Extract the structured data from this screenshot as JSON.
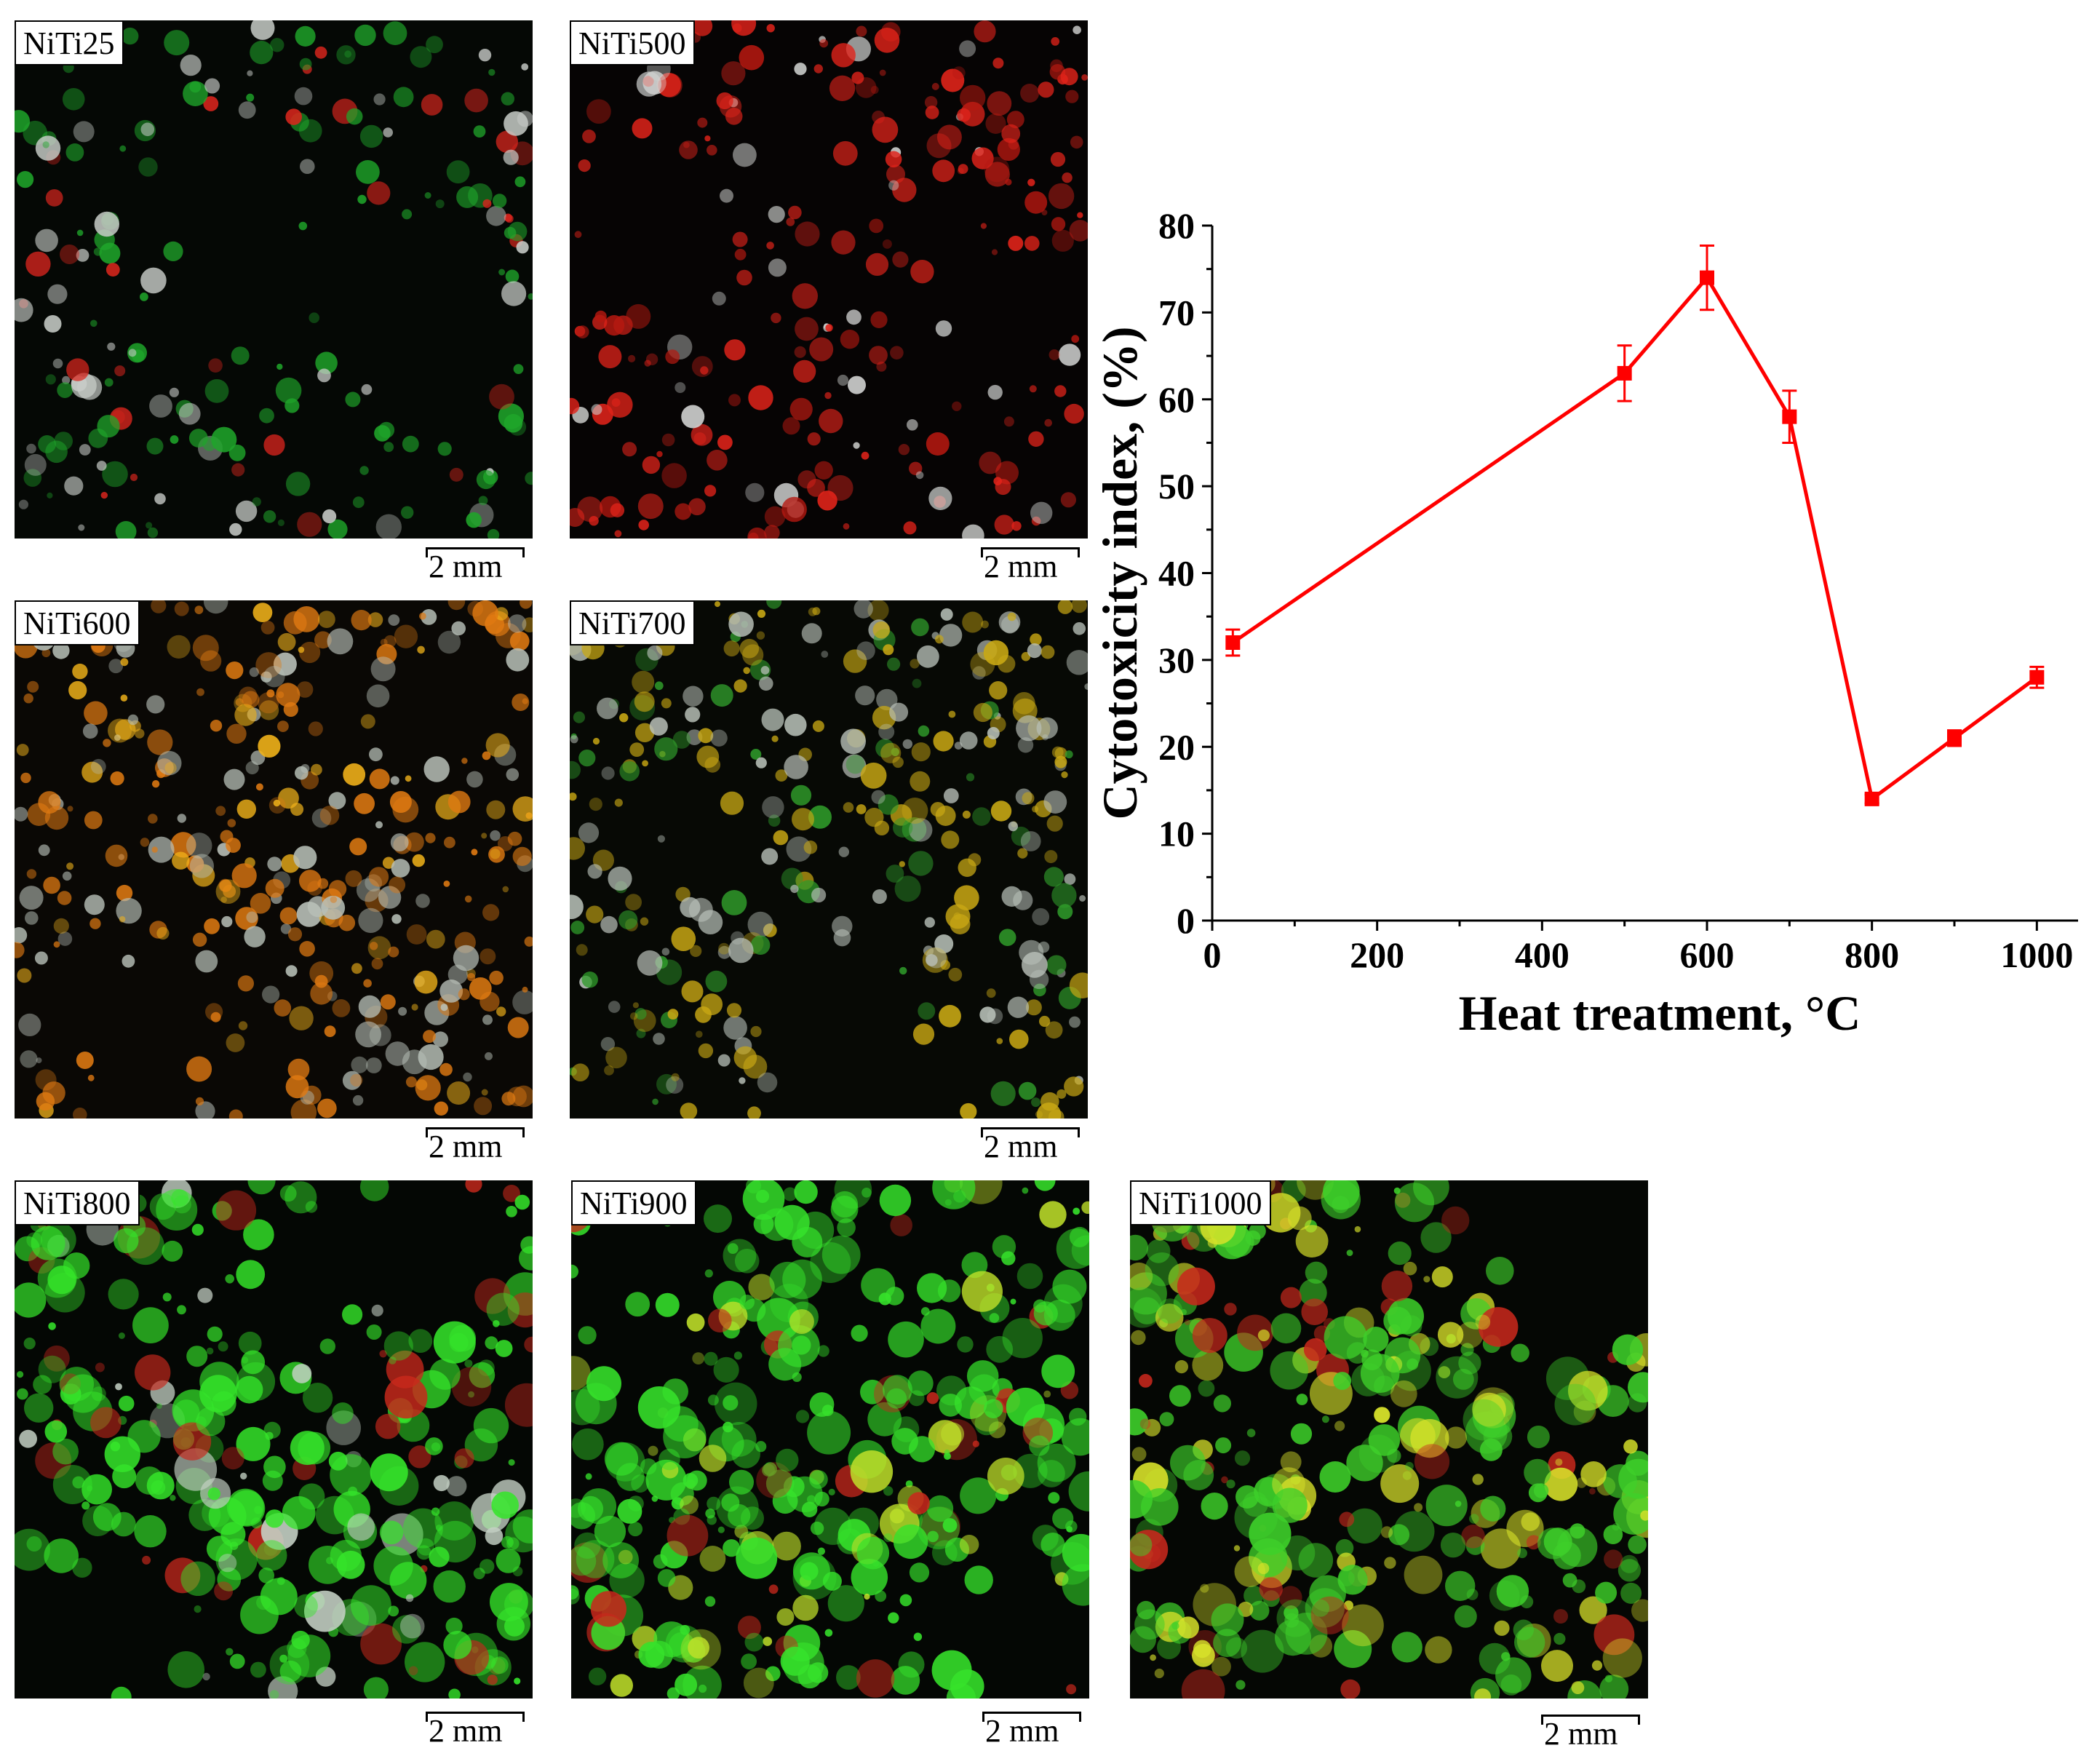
{
  "panels": [
    {
      "label": "NiTi25",
      "scale": "2 mm",
      "palette": {
        "bg": "#050805",
        "dominant": "#1fa52a",
        "secondary": "#d8251d",
        "accent": "#c8ccc8"
      }
    },
    {
      "label": "NiTi500",
      "scale": "2 mm",
      "palette": {
        "bg": "#060404",
        "dominant": "#e0231a",
        "secondary": "#b51810",
        "accent": "#d0d2d0"
      }
    },
    {
      "label": "NiTi600",
      "scale": "2 mm",
      "palette": {
        "bg": "#0a0805",
        "dominant": "#e07a12",
        "secondary": "#b8c0b8",
        "accent": "#f0b21a"
      }
    },
    {
      "label": "NiTi700",
      "scale": "2 mm",
      "palette": {
        "bg": "#070905",
        "dominant": "#c9a814",
        "secondary": "#b8c0b8",
        "accent": "#2f9a2a"
      }
    },
    {
      "label": "NiTi800",
      "scale": "2 mm",
      "palette": {
        "bg": "#040704",
        "dominant": "#35e52a",
        "secondary": "#c4d0c4",
        "accent": "#c8281c"
      }
    },
    {
      "label": "NiTi900",
      "scale": "2 mm",
      "palette": {
        "bg": "#040704",
        "dominant": "#36e22b",
        "secondary": "#bfe02a",
        "accent": "#c8281c"
      }
    },
    {
      "label": "NiTi1000",
      "scale": "2 mm",
      "palette": {
        "bg": "#050704",
        "dominant": "#3ed02a",
        "secondary": "#d8e22a",
        "accent": "#c8281c"
      }
    }
  ],
  "chart_data": {
    "type": "line",
    "x": [
      25,
      500,
      600,
      700,
      800,
      900,
      1000
    ],
    "series": [
      {
        "values": [
          32,
          63,
          74,
          58,
          14,
          21,
          28
        ],
        "errors": [
          1.5,
          3.2,
          3.7,
          3.0,
          0.5,
          0.9,
          1.2
        ],
        "color": "#ff0000",
        "marker": "square"
      }
    ],
    "xlabel": "Heat treatment, °C",
    "ylabel": "Cytotoxicity index, (%)",
    "xlim": [
      0,
      1050
    ],
    "ylim": [
      0,
      80
    ],
    "xticks": [
      0,
      200,
      400,
      600,
      800,
      1000
    ],
    "yticks": [
      0,
      10,
      20,
      30,
      40,
      50,
      60,
      70,
      80
    ],
    "grid": false,
    "legend": "none"
  }
}
